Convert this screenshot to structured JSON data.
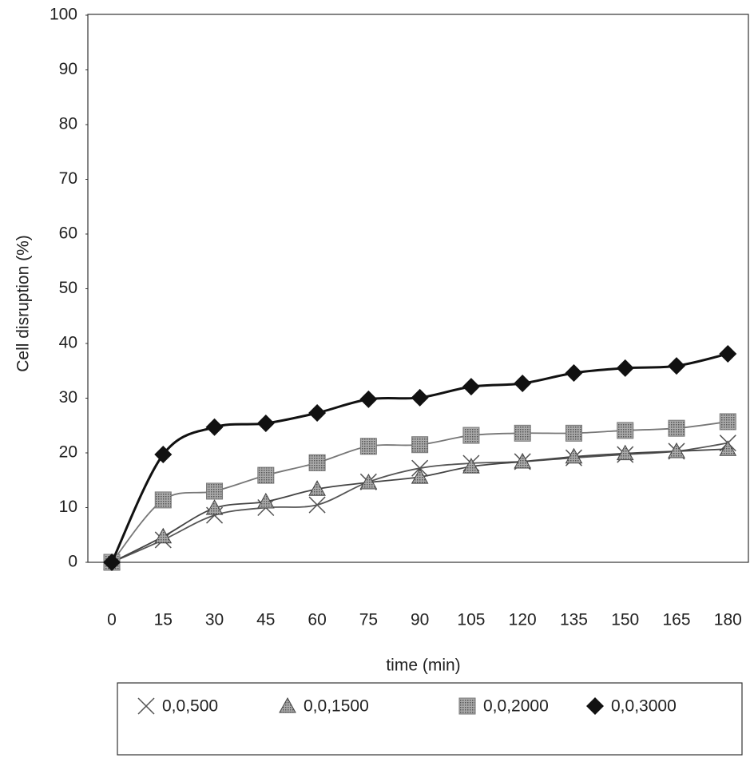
{
  "chart_data": {
    "type": "scatter",
    "x_label": "time (min)",
    "y_label": "Cell disruption (%)",
    "x": [
      0,
      15,
      30,
      45,
      60,
      75,
      90,
      105,
      120,
      135,
      150,
      165,
      180
    ],
    "xlim": [
      -7,
      186
    ],
    "xticks": [
      0,
      15,
      30,
      45,
      60,
      75,
      90,
      105,
      120,
      135,
      150,
      165,
      180
    ],
    "ylim": [
      0,
      100
    ],
    "yticks": [
      0,
      10,
      20,
      30,
      40,
      50,
      60,
      70,
      80,
      90,
      100
    ],
    "grid": false,
    "legend": "bottom",
    "series": [
      {
        "name": "0,0,500",
        "color": "#555555",
        "marker": "x",
        "values": [
          0,
          4.1,
          8.6,
          10.0,
          10.5,
          14.7,
          17.2,
          18.1,
          18.4,
          19.1,
          19.7,
          20.3,
          21.8
        ]
      },
      {
        "name": "0,0,1500",
        "color": "#444444",
        "marker": "triangle",
        "values": [
          0,
          4.7,
          9.9,
          11.1,
          13.4,
          14.6,
          15.6,
          17.5,
          18.4,
          19.3,
          19.9,
          20.3,
          20.7
        ]
      },
      {
        "name": "0,0,2000",
        "color": "#777777",
        "marker": "square",
        "values": [
          0,
          11.4,
          13.0,
          15.9,
          18.2,
          21.2,
          21.5,
          23.2,
          23.6,
          23.6,
          24.1,
          24.5,
          25.7
        ]
      },
      {
        "name": "0,0,3000",
        "color": "#111111",
        "marker": "diamond",
        "values": [
          0,
          19.7,
          24.7,
          25.4,
          27.3,
          29.8,
          30.1,
          32.1,
          32.7,
          34.6,
          35.5,
          35.9,
          38.1
        ]
      }
    ]
  }
}
